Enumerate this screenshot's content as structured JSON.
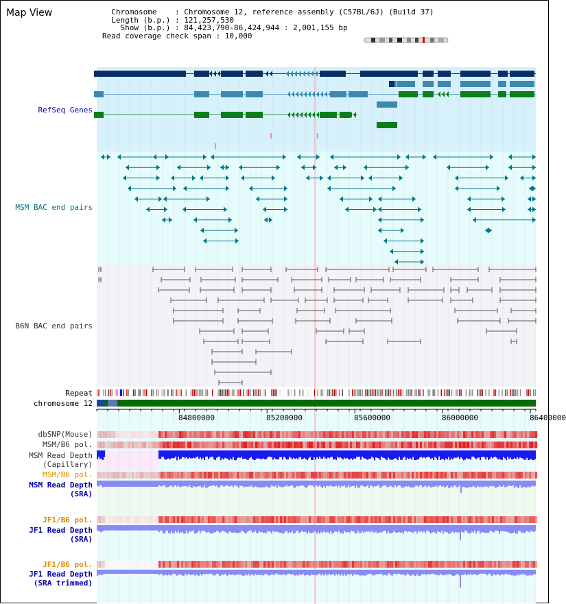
{
  "header": {
    "title": "Map View",
    "info_lines": [
      "  Chromosome    : Chromosome 12, reference assembly (C57BL/6J) (Build 37)",
      "  Length (b.p.) : 121,257,530",
      "    Show (b.p.) : 84,423,790-86,424,944 : 2,001,155 bp",
      "Read coverage check span : 10,000"
    ]
  },
  "tracks": {
    "refseq": {
      "label": "RefSeq Genes",
      "color": "#0000aa"
    },
    "msm_bac": {
      "label": "MSM BAC end pairs",
      "color": "#006f7f"
    },
    "b6n_bac": {
      "label": "B6N BAC end pairs",
      "color": "#333333"
    },
    "repeat": {
      "label": "Repeat"
    },
    "chromosome": {
      "label": "chromosome 12"
    },
    "dbsnp": {
      "label": "dbSNP(Mouse)"
    },
    "msm_b6_pol_1": {
      "label": "MSM/B6 pol."
    },
    "msm_read_depth_cap": {
      "line1": "MSM Read Depth",
      "line2": "(Capillary)"
    },
    "msm_b6_pol_2": {
      "label": "MSM/B6 pol.",
      "color": "#e08a00"
    },
    "msm_read_depth_sra": {
      "line1": "MSM Read Depth",
      "line2": "(SRA)",
      "color": "#0000aa"
    },
    "jf1_b6_pol_1": {
      "label": "JF1/B6 pol.",
      "color": "#e08a00"
    },
    "jf1_read_depth_sra": {
      "line1": "JF1 Read Depth",
      "line2": "(SRA)",
      "color": "#0000aa"
    },
    "jf1_b6_pol_2": {
      "label": "JF1/B6 pol.",
      "color": "#e08a00"
    },
    "jf1_read_depth_trim": {
      "line1": "JF1 Read Depth",
      "line2": "(SRA trimmed)",
      "color": "#0000aa"
    }
  },
  "axis": {
    "ticks": [
      "84800000",
      "85200000",
      "85600000",
      "86000000",
      "86400000"
    ],
    "tick_values": [
      84800000,
      85200000,
      85600000,
      86000000,
      86400000
    ],
    "start": 84423790,
    "end": 86424944
  },
  "colors": {
    "gene_dark": "#0a2f66",
    "gene_mid": "#3d88b0",
    "gene_green": "#0b7d1a",
    "refseq_bg": "#d6f1fb",
    "bac_bg": "#e6fbfb",
    "b6n_bg": "#f3f3f7",
    "chrom_green": "#086b08",
    "depth_blue": "#1a1aee",
    "depth_light": "#8a8af5"
  }
}
